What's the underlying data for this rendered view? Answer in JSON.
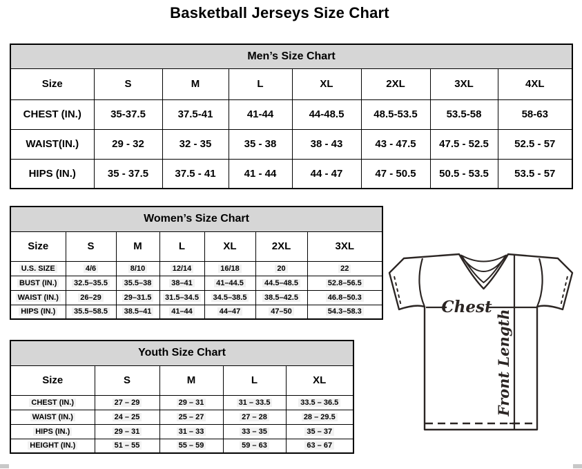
{
  "title": "Basketball Jerseys Size Chart",
  "colors": {
    "band_bg": "#d6d6d6",
    "table_border": "#000000",
    "diagram_stroke": "#2b2523",
    "corner_artifact": "#c8c8c8"
  },
  "tables": {
    "men": {
      "title": "Men’s Size Chart",
      "size_row": [
        "Size",
        "S",
        "M",
        "L",
        "XL",
        "2XL",
        "3XL",
        "4XL"
      ],
      "rows": [
        [
          "CHEST (IN.)",
          "35-37.5",
          "37.5-41",
          "41-44",
          "44-48.5",
          "48.5-53.5",
          "53.5-58",
          "58-63"
        ],
        [
          "WAIST(IN.)",
          "29 - 32",
          "32 - 35",
          "35 - 38",
          "38 - 43",
          "43 - 47.5",
          "47.5 - 52.5",
          "52.5 - 57"
        ],
        [
          "HIPS (IN.)",
          "35 - 37.5",
          "37.5 - 41",
          "41 - 44",
          "44 - 47",
          "47 - 50.5",
          "50.5 - 53.5",
          "53.5 - 57"
        ]
      ]
    },
    "women": {
      "title": "Women’s Size Chart",
      "size_row": [
        "Size",
        "S",
        "M",
        "L",
        "XL",
        "2XL",
        "3XL"
      ],
      "rows": [
        [
          "U.S. SIZE",
          "4/6",
          "8/10",
          "12/14",
          "16/18",
          "20",
          "22"
        ],
        [
          "BUST (IN.)",
          "32.5–35.5",
          "35.5–38",
          "38–41",
          "41–44.5",
          "44.5–48.5",
          "52.8–56.5"
        ],
        [
          "WAIST (IN.)",
          "26–29",
          "29–31.5",
          "31.5–34.5",
          "34.5–38.5",
          "38.5–42.5",
          "46.8–50.3"
        ],
        [
          "HIPS (IN.)",
          "35.5–58.5",
          "38.5–41",
          "41–44",
          "44–47",
          "47–50",
          "54.3–58.3"
        ]
      ]
    },
    "youth": {
      "title": "Youth Size Chart",
      "size_row": [
        "Size",
        "S",
        "M",
        "L",
        "XL"
      ],
      "rows": [
        [
          "CHEST (IN.)",
          "27 – 29",
          "29 – 31",
          "31 – 33.5",
          "33.5 – 36.5"
        ],
        [
          "WAIST (IN.)",
          "24 – 25",
          "25 – 27",
          "27 – 28",
          "28 – 29.5"
        ],
        [
          "HIPS (IN.)",
          "29 – 31",
          "31 – 33",
          "33 – 35",
          "35 – 37"
        ],
        [
          "HEIGHT (IN.)",
          "51 – 55",
          "55 – 59",
          "59 – 63",
          "63 – 67"
        ]
      ]
    }
  },
  "diagram": {
    "chest_label": "Chest",
    "front_length_label": "Front Length"
  }
}
